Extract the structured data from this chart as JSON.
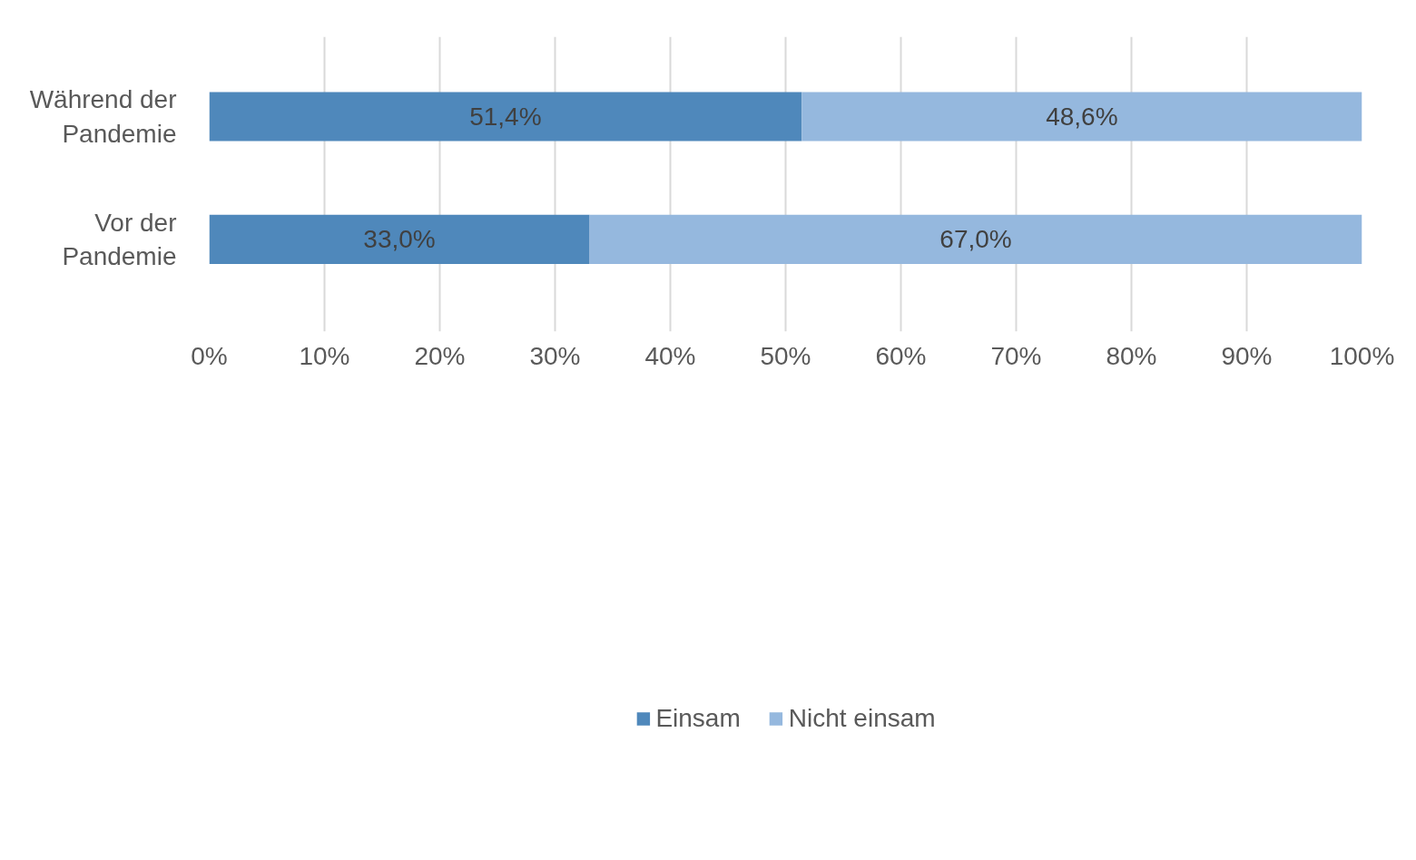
{
  "chart_data": {
    "type": "bar",
    "orientation": "horizontal",
    "stacked": true,
    "categories": [
      "Während der Pandemie",
      "Vor der Pandemie"
    ],
    "series": [
      {
        "name": "Einsam",
        "color": "#4f88bb",
        "values": [
          51.4,
          33.0
        ],
        "value_labels": [
          "51,4%",
          "33,0%"
        ]
      },
      {
        "name": "Nicht einsam",
        "color": "#95b8de",
        "values": [
          48.6,
          67.0
        ],
        "value_labels": [
          "48,6%",
          "67,0%"
        ]
      }
    ],
    "xlim": [
      0,
      100
    ],
    "xticks": [
      {
        "value": 0,
        "label": "0%"
      },
      {
        "value": 10,
        "label": "10%"
      },
      {
        "value": 20,
        "label": "20%"
      },
      {
        "value": 30,
        "label": "30%"
      },
      {
        "value": 40,
        "label": "40%"
      },
      {
        "value": 50,
        "label": "50%"
      },
      {
        "value": 60,
        "label": "60%"
      },
      {
        "value": 70,
        "label": "70%"
      },
      {
        "value": 80,
        "label": "80%"
      },
      {
        "value": 90,
        "label": "90%"
      },
      {
        "value": 100,
        "label": "100%"
      }
    ],
    "grid": "x",
    "legend": "bottom"
  }
}
